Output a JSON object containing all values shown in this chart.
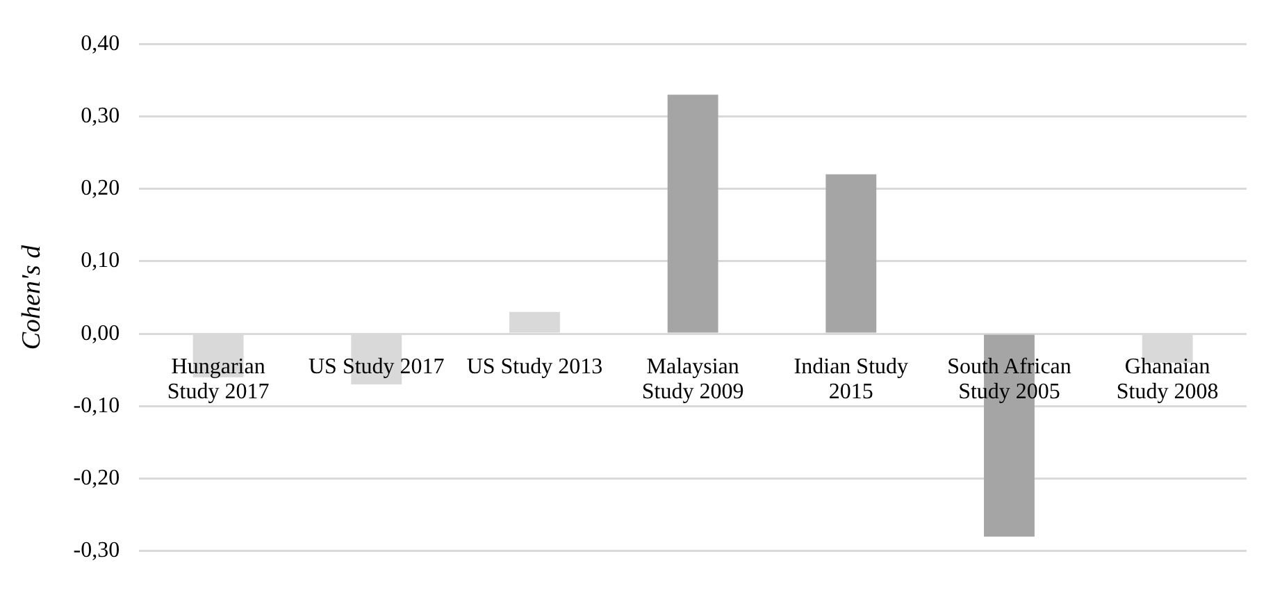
{
  "chart_data": {
    "type": "bar",
    "ylabel": "Cohen's d",
    "categories": [
      "Hungarian Study 2017",
      "US Study 2017",
      "US Study 2013",
      "Malaysian Study 2009",
      "Indian Study 2015",
      "South African Study 2005",
      "Ghanaian Study 2008"
    ],
    "values": [
      -0.06,
      -0.07,
      0.03,
      0.33,
      0.22,
      -0.28,
      -0.04
    ],
    "colors": [
      "#d9d9d9",
      "#d9d9d9",
      "#d9d9d9",
      "#a5a5a5",
      "#a5a5a5",
      "#a5a5a5",
      "#d9d9d9"
    ],
    "ylim": [
      -0.3,
      0.4
    ],
    "yticks": [
      {
        "value": -0.3,
        "label": "-0,30"
      },
      {
        "value": -0.2,
        "label": "-0,20"
      },
      {
        "value": -0.1,
        "label": "-0,10"
      },
      {
        "value": 0,
        "label": "0,00"
      },
      {
        "value": 0.1,
        "label": "0,10"
      },
      {
        "value": 0.2,
        "label": "0,20"
      },
      {
        "value": 0.3,
        "label": "0,30"
      },
      {
        "value": 0.4,
        "label": "0,40"
      }
    ],
    "grid": "y"
  }
}
